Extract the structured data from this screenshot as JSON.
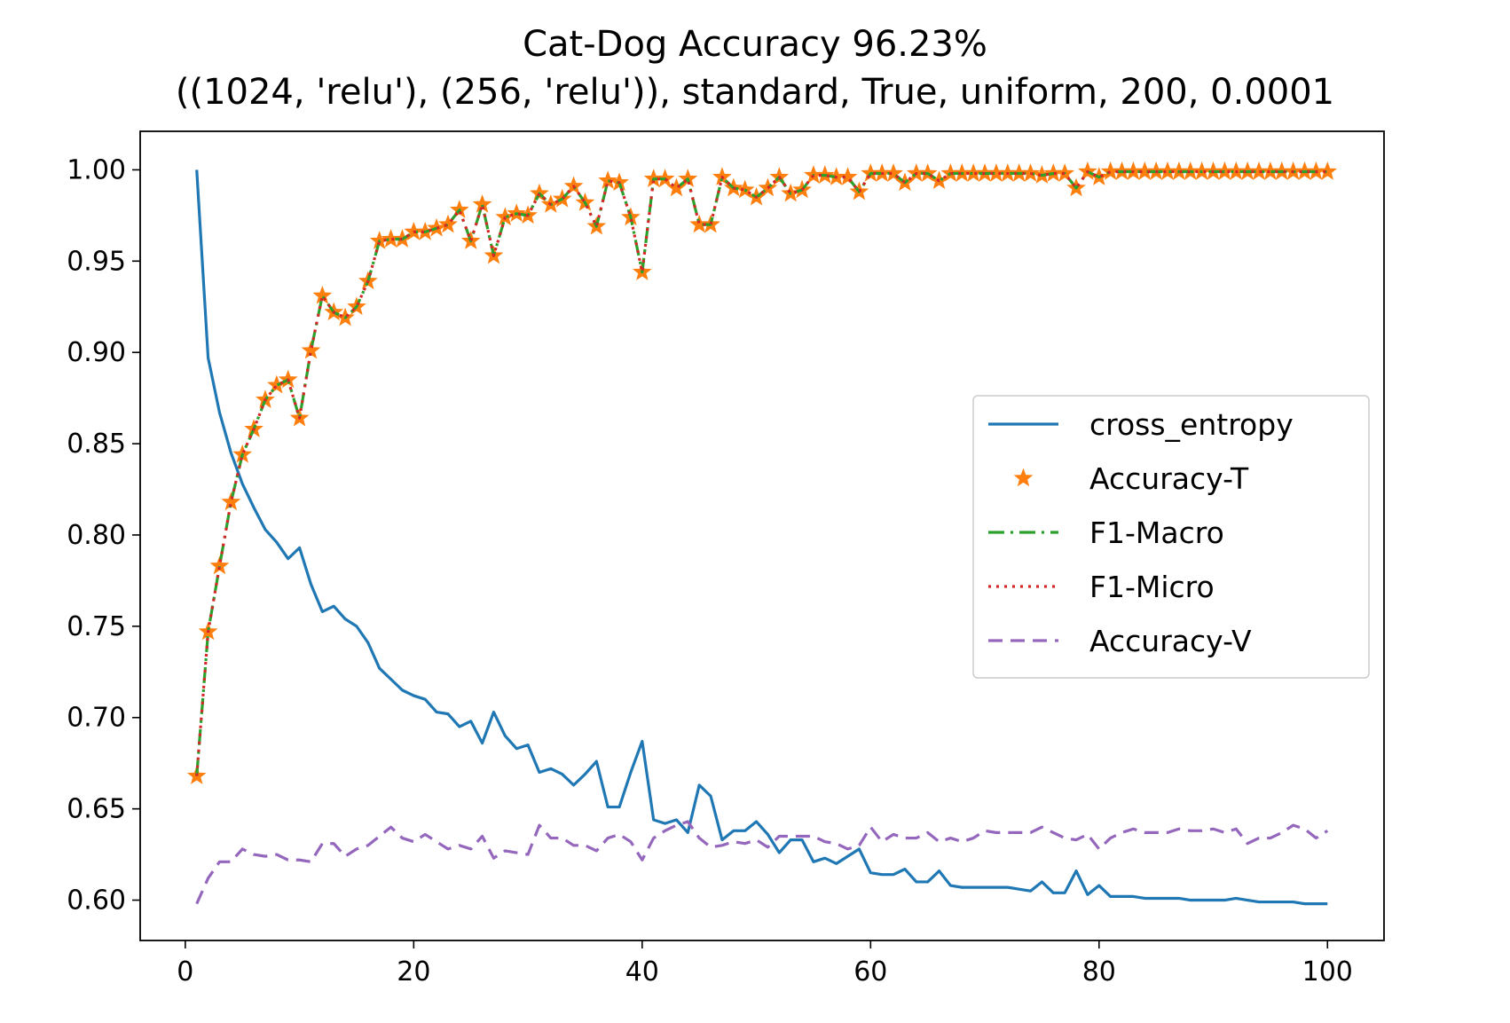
{
  "chart_data": {
    "type": "line",
    "title": "Cat-Dog Accuracy 96.23%",
    "subtitle": "((1024, 'relu'), (256, 'relu')), standard, True, uniform, 200, 0.0001",
    "xlabel": "",
    "ylabel": "",
    "xlim": [
      -3.95,
      104.95
    ],
    "ylim": [
      0.5779,
      1.0211
    ],
    "xticks": [
      0,
      20,
      40,
      60,
      80,
      100
    ],
    "yticks": [
      0.6,
      0.65,
      0.7,
      0.75,
      0.8,
      0.85,
      0.9,
      0.95,
      1.0
    ],
    "xtick_labels": [
      "0",
      "20",
      "40",
      "60",
      "80",
      "100"
    ],
    "ytick_labels": [
      "0.60",
      "0.65",
      "0.70",
      "0.75",
      "0.80",
      "0.85",
      "0.90",
      "0.95",
      "1.00"
    ],
    "grid": false,
    "legend_position": "center-right",
    "x": [
      1,
      2,
      3,
      4,
      5,
      6,
      7,
      8,
      9,
      10,
      11,
      12,
      13,
      14,
      15,
      16,
      17,
      18,
      19,
      20,
      21,
      22,
      23,
      24,
      25,
      26,
      27,
      28,
      29,
      30,
      31,
      32,
      33,
      34,
      35,
      36,
      37,
      38,
      39,
      40,
      41,
      42,
      43,
      44,
      45,
      46,
      47,
      48,
      49,
      50,
      51,
      52,
      53,
      54,
      55,
      56,
      57,
      58,
      59,
      60,
      61,
      62,
      63,
      64,
      65,
      66,
      67,
      68,
      69,
      70,
      71,
      72,
      73,
      74,
      75,
      76,
      77,
      78,
      79,
      80,
      81,
      82,
      83,
      84,
      85,
      86,
      87,
      88,
      89,
      90,
      91,
      92,
      93,
      94,
      95,
      96,
      97,
      98,
      99,
      100
    ],
    "series": [
      {
        "name": "cross_entropy",
        "color": "#1f77b4",
        "style": "solid",
        "values": [
          1.0,
          0.897,
          0.867,
          0.845,
          0.828,
          0.815,
          0.803,
          0.796,
          0.787,
          0.793,
          0.773,
          0.758,
          0.761,
          0.754,
          0.75,
          0.741,
          0.727,
          0.721,
          0.715,
          0.712,
          0.71,
          0.703,
          0.702,
          0.695,
          0.698,
          0.686,
          0.703,
          0.69,
          0.683,
          0.685,
          0.67,
          0.672,
          0.669,
          0.663,
          0.669,
          0.676,
          0.651,
          0.651,
          0.67,
          0.687,
          0.644,
          0.642,
          0.644,
          0.637,
          0.663,
          0.657,
          0.633,
          0.638,
          0.638,
          0.643,
          0.636,
          0.626,
          0.633,
          0.633,
          0.621,
          0.623,
          0.62,
          0.624,
          0.628,
          0.615,
          0.614,
          0.614,
          0.617,
          0.61,
          0.61,
          0.616,
          0.608,
          0.607,
          0.607,
          0.607,
          0.607,
          0.607,
          0.606,
          0.605,
          0.61,
          0.604,
          0.604,
          0.616,
          0.603,
          0.608,
          0.602,
          0.602,
          0.602,
          0.601,
          0.601,
          0.601,
          0.601,
          0.6,
          0.6,
          0.6,
          0.6,
          0.601,
          0.6,
          0.599,
          0.599,
          0.599,
          0.599,
          0.598,
          0.598,
          0.598
        ]
      },
      {
        "name": "Accuracy-T",
        "color": "#ff7f0e",
        "style": "star-markers",
        "values": [
          0.668,
          0.747,
          0.783,
          0.818,
          0.844,
          0.858,
          0.874,
          0.882,
          0.885,
          0.864,
          0.901,
          0.931,
          0.922,
          0.919,
          0.925,
          0.939,
          0.961,
          0.962,
          0.962,
          0.966,
          0.966,
          0.968,
          0.97,
          0.978,
          0.961,
          0.981,
          0.953,
          0.974,
          0.976,
          0.975,
          0.987,
          0.981,
          0.984,
          0.991,
          0.982,
          0.969,
          0.994,
          0.993,
          0.974,
          0.944,
          0.995,
          0.995,
          0.99,
          0.995,
          0.97,
          0.97,
          0.996,
          0.99,
          0.989,
          0.985,
          0.99,
          0.996,
          0.987,
          0.989,
          0.997,
          0.997,
          0.996,
          0.996,
          0.988,
          0.998,
          0.998,
          0.998,
          0.993,
          0.998,
          0.998,
          0.994,
          0.998,
          0.998,
          0.998,
          0.998,
          0.998,
          0.998,
          0.998,
          0.998,
          0.997,
          0.998,
          0.998,
          0.99,
          0.999,
          0.996,
          0.999,
          0.999,
          0.999,
          0.999,
          0.999,
          0.999,
          0.999,
          0.999,
          0.999,
          0.999,
          0.999,
          0.999,
          0.999,
          0.999,
          0.999,
          0.999,
          0.999,
          0.999,
          0.999,
          0.999
        ]
      },
      {
        "name": "F1-Macro",
        "color": "#2ca02c",
        "style": "dashdot",
        "values": [
          0.668,
          0.747,
          0.783,
          0.818,
          0.844,
          0.858,
          0.874,
          0.882,
          0.885,
          0.864,
          0.901,
          0.931,
          0.922,
          0.919,
          0.925,
          0.939,
          0.961,
          0.962,
          0.962,
          0.966,
          0.966,
          0.968,
          0.97,
          0.978,
          0.961,
          0.981,
          0.953,
          0.974,
          0.976,
          0.975,
          0.987,
          0.981,
          0.984,
          0.991,
          0.982,
          0.969,
          0.994,
          0.993,
          0.974,
          0.944,
          0.995,
          0.995,
          0.99,
          0.995,
          0.97,
          0.97,
          0.996,
          0.99,
          0.989,
          0.985,
          0.99,
          0.996,
          0.987,
          0.989,
          0.997,
          0.997,
          0.996,
          0.996,
          0.988,
          0.998,
          0.998,
          0.998,
          0.993,
          0.998,
          0.998,
          0.994,
          0.998,
          0.998,
          0.998,
          0.998,
          0.998,
          0.998,
          0.998,
          0.998,
          0.997,
          0.998,
          0.998,
          0.99,
          0.999,
          0.996,
          0.999,
          0.999,
          0.999,
          0.999,
          0.999,
          0.999,
          0.999,
          0.999,
          0.999,
          0.999,
          0.999,
          0.999,
          0.999,
          0.999,
          0.999,
          0.999,
          0.999,
          0.999,
          0.999,
          0.999
        ]
      },
      {
        "name": "F1-Micro",
        "color": "#d62728",
        "style": "dotted",
        "values": [
          0.668,
          0.747,
          0.783,
          0.818,
          0.844,
          0.858,
          0.874,
          0.882,
          0.885,
          0.864,
          0.901,
          0.931,
          0.922,
          0.919,
          0.925,
          0.939,
          0.961,
          0.962,
          0.962,
          0.966,
          0.966,
          0.968,
          0.97,
          0.978,
          0.961,
          0.981,
          0.953,
          0.974,
          0.976,
          0.975,
          0.987,
          0.981,
          0.984,
          0.991,
          0.982,
          0.969,
          0.994,
          0.993,
          0.974,
          0.944,
          0.995,
          0.995,
          0.99,
          0.995,
          0.97,
          0.97,
          0.996,
          0.99,
          0.989,
          0.985,
          0.99,
          0.996,
          0.987,
          0.989,
          0.997,
          0.997,
          0.996,
          0.996,
          0.988,
          0.998,
          0.998,
          0.998,
          0.993,
          0.998,
          0.998,
          0.994,
          0.998,
          0.998,
          0.998,
          0.998,
          0.998,
          0.998,
          0.998,
          0.998,
          0.997,
          0.998,
          0.998,
          0.99,
          0.999,
          0.996,
          0.999,
          0.999,
          0.999,
          0.999,
          0.999,
          0.999,
          0.999,
          0.999,
          0.999,
          0.999,
          0.999,
          0.999,
          0.999,
          0.999,
          0.999,
          0.999,
          0.999,
          0.999,
          0.999,
          0.999
        ]
      },
      {
        "name": "Accuracy-V",
        "color": "#9467bd",
        "style": "dashed",
        "values": [
          0.598,
          0.612,
          0.621,
          0.621,
          0.628,
          0.625,
          0.624,
          0.625,
          0.622,
          0.622,
          0.621,
          0.631,
          0.631,
          0.624,
          0.628,
          0.63,
          0.635,
          0.64,
          0.634,
          0.632,
          0.636,
          0.632,
          0.628,
          0.63,
          0.628,
          0.635,
          0.623,
          0.627,
          0.626,
          0.625,
          0.641,
          0.634,
          0.634,
          0.63,
          0.63,
          0.627,
          0.634,
          0.636,
          0.632,
          0.622,
          0.634,
          0.638,
          0.641,
          0.643,
          0.634,
          0.629,
          0.63,
          0.632,
          0.631,
          0.633,
          0.629,
          0.635,
          0.635,
          0.635,
          0.635,
          0.632,
          0.631,
          0.628,
          0.63,
          0.64,
          0.632,
          0.636,
          0.634,
          0.634,
          0.637,
          0.632,
          0.634,
          0.632,
          0.634,
          0.638,
          0.637,
          0.637,
          0.637,
          0.637,
          0.64,
          0.637,
          0.634,
          0.633,
          0.636,
          0.628,
          0.634,
          0.637,
          0.639,
          0.637,
          0.637,
          0.637,
          0.639,
          0.638,
          0.638,
          0.639,
          0.637,
          0.639,
          0.631,
          0.634,
          0.634,
          0.637,
          0.641,
          0.639,
          0.634,
          0.638
        ]
      }
    ]
  }
}
